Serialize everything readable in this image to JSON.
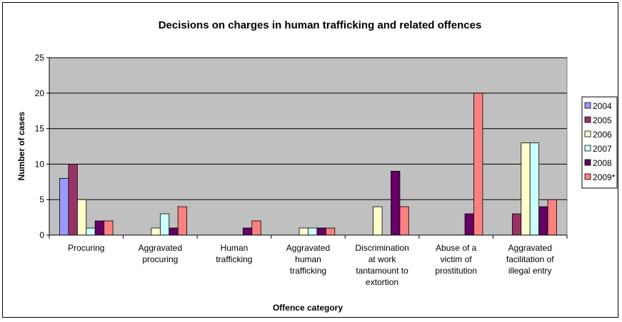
{
  "chart_data": {
    "type": "bar",
    "title": "Decisions on charges in human trafficking and related offences",
    "xlabel": "Offence category",
    "ylabel": "Number of cases",
    "ylim": [
      0,
      25
    ],
    "yticks": [
      0,
      5,
      10,
      15,
      20,
      25
    ],
    "grid": true,
    "legend_position": "right",
    "categories": [
      [
        "Procuring"
      ],
      [
        "Aggravated",
        "procuring"
      ],
      [
        "Human",
        "trafficking"
      ],
      [
        "Aggravated",
        "human",
        "trafficking"
      ],
      [
        "Discrimination",
        "at work",
        "tantamount to",
        "extortion"
      ],
      [
        "Abuse of a",
        "victim of",
        "prostitution"
      ],
      [
        "Aggravated",
        "facilitation of",
        "illegal entry"
      ]
    ],
    "series": [
      {
        "name": "2004",
        "color": "#9999ff",
        "values": [
          8,
          0,
          0,
          0,
          0,
          0,
          0
        ]
      },
      {
        "name": "2005",
        "color": "#993366",
        "values": [
          10,
          0,
          0,
          0,
          0,
          0,
          3
        ]
      },
      {
        "name": "2006",
        "color": "#ffffcc",
        "values": [
          5,
          1,
          0,
          1,
          4,
          0,
          13
        ]
      },
      {
        "name": "2007",
        "color": "#ccffff",
        "values": [
          1,
          3,
          0,
          1,
          0,
          0,
          13
        ]
      },
      {
        "name": "2008",
        "color": "#660066",
        "values": [
          2,
          1,
          1,
          1,
          9,
          3,
          4
        ]
      },
      {
        "name": "2009*",
        "color": "#ff8080",
        "values": [
          2,
          4,
          2,
          1,
          4,
          20,
          5
        ]
      }
    ]
  }
}
